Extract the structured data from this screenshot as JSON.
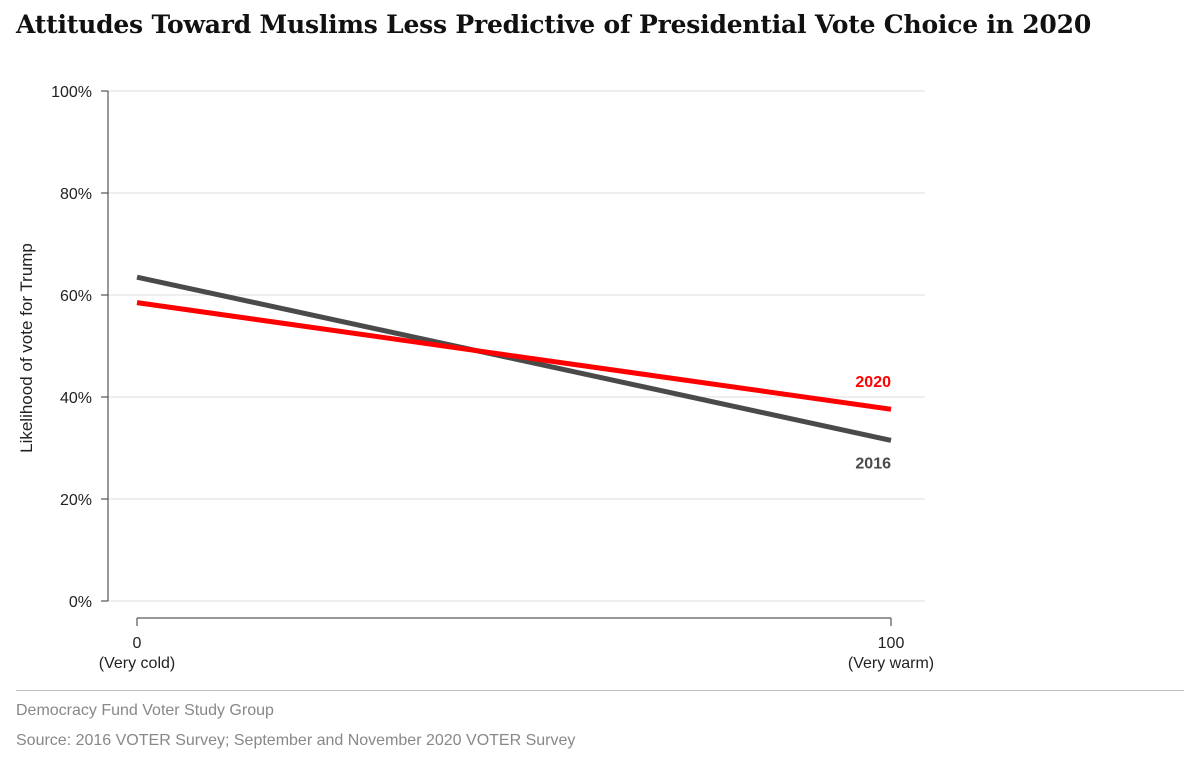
{
  "chart_data": {
    "type": "line",
    "title": "Attitudes Toward Muslims Less Predictive of Presidential Vote Choice in 2020",
    "ylabel": "Likelihood of vote for Trump",
    "xlabel": "",
    "x": [
      0,
      100
    ],
    "xlim": [
      0,
      100
    ],
    "ylim": [
      0,
      100
    ],
    "x_ticks": [
      {
        "value": 0,
        "label": "0",
        "sublabel": "(Very cold)"
      },
      {
        "value": 100,
        "label": "100",
        "sublabel": "(Very warm)"
      }
    ],
    "y_ticks": [
      {
        "value": 0,
        "label": "0%"
      },
      {
        "value": 20,
        "label": "20%"
      },
      {
        "value": 40,
        "label": "40%"
      },
      {
        "value": 60,
        "label": "60%"
      },
      {
        "value": 80,
        "label": "80%"
      },
      {
        "value": 100,
        "label": "100%"
      }
    ],
    "grid": true,
    "series": [
      {
        "name": "2016",
        "values": [
          63.5,
          31.5
        ],
        "color": "#4a4a4a"
      },
      {
        "name": "2020",
        "values": [
          58.5,
          37.6
        ],
        "color": "#ff0000"
      }
    ]
  },
  "footer": {
    "publisher": "Democracy Fund Voter Study Group",
    "source": "Source: 2016 VOTER Survey; September and November 2020 VOTER Survey"
  }
}
